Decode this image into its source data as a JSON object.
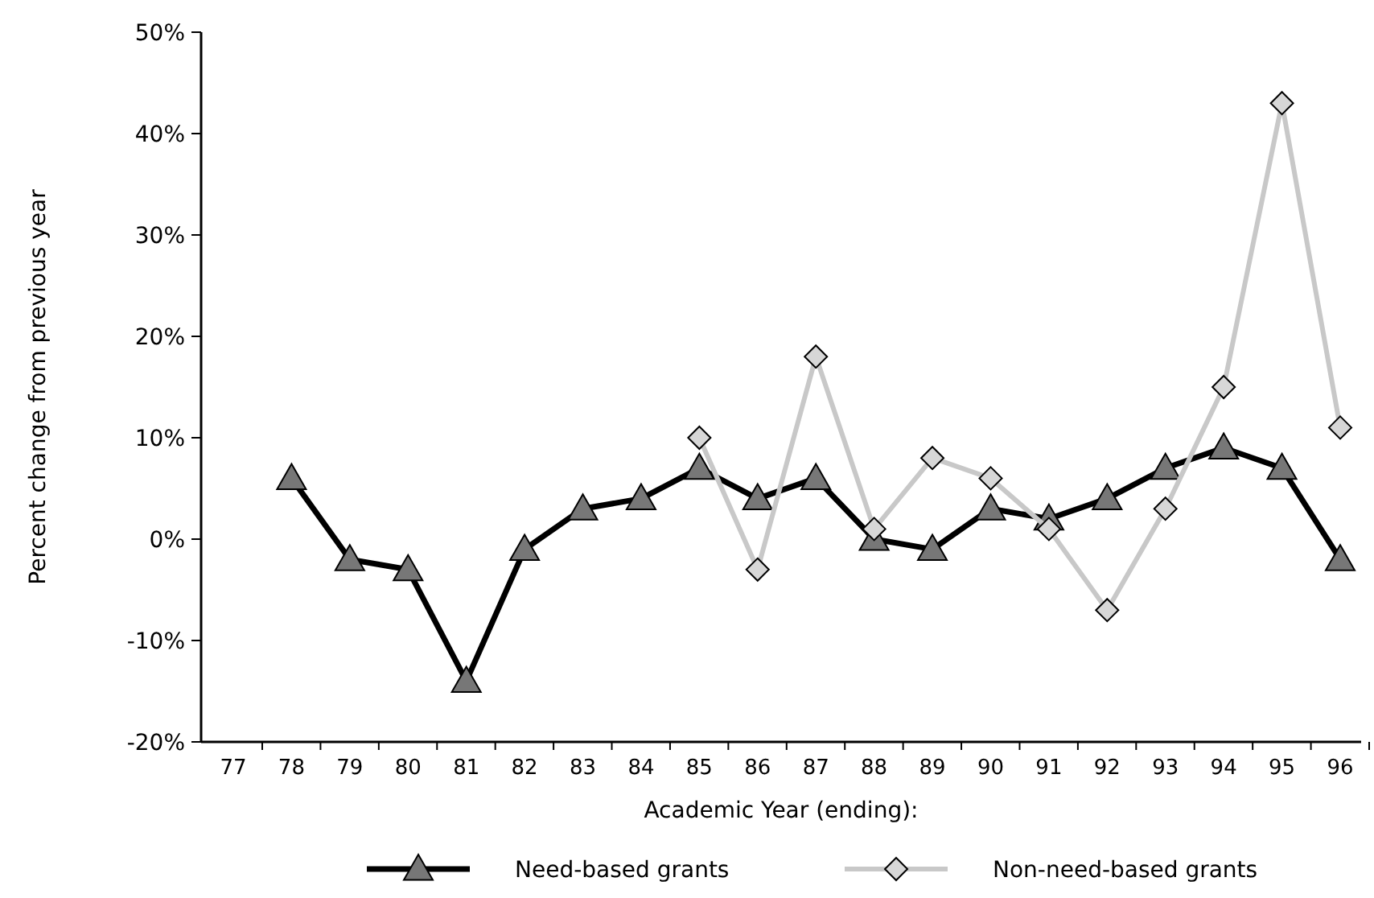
{
  "chart_data": {
    "type": "line",
    "xlabel": "Academic Year (ending):",
    "ylabel": "Percent change from previous year",
    "categories": [
      "77",
      "78",
      "79",
      "80",
      "81",
      "82",
      "83",
      "84",
      "85",
      "86",
      "87",
      "88",
      "89",
      "90",
      "91",
      "92",
      "93",
      "94",
      "95",
      "96"
    ],
    "series": [
      {
        "name": "Need-based grants",
        "color": "#000000",
        "marker": "triangle",
        "values": [
          null,
          6,
          -2,
          -3,
          -14,
          -1,
          3,
          4,
          7,
          4,
          6,
          0,
          -1,
          3,
          2,
          4,
          7,
          9,
          7,
          -2
        ]
      },
      {
        "name": "Non-need-based grants",
        "color": "#c8c8c8",
        "marker": "diamond",
        "values": [
          null,
          null,
          null,
          null,
          null,
          null,
          null,
          null,
          10,
          -3,
          18,
          1,
          8,
          6,
          1,
          -7,
          3,
          15,
          43,
          11
        ]
      }
    ],
    "ylim": [
      -20,
      50
    ],
    "yticks": [
      {
        "value": -20,
        "label": "-20%"
      },
      {
        "value": -10,
        "label": "-10%"
      },
      {
        "value": 0,
        "label": "0%"
      },
      {
        "value": 10,
        "label": "10%"
      },
      {
        "value": 20,
        "label": "20%"
      },
      {
        "value": 30,
        "label": "30%"
      },
      {
        "value": 40,
        "label": "40%"
      },
      {
        "value": 50,
        "label": "50%"
      }
    ],
    "grid": false,
    "legend": "bottom"
  }
}
